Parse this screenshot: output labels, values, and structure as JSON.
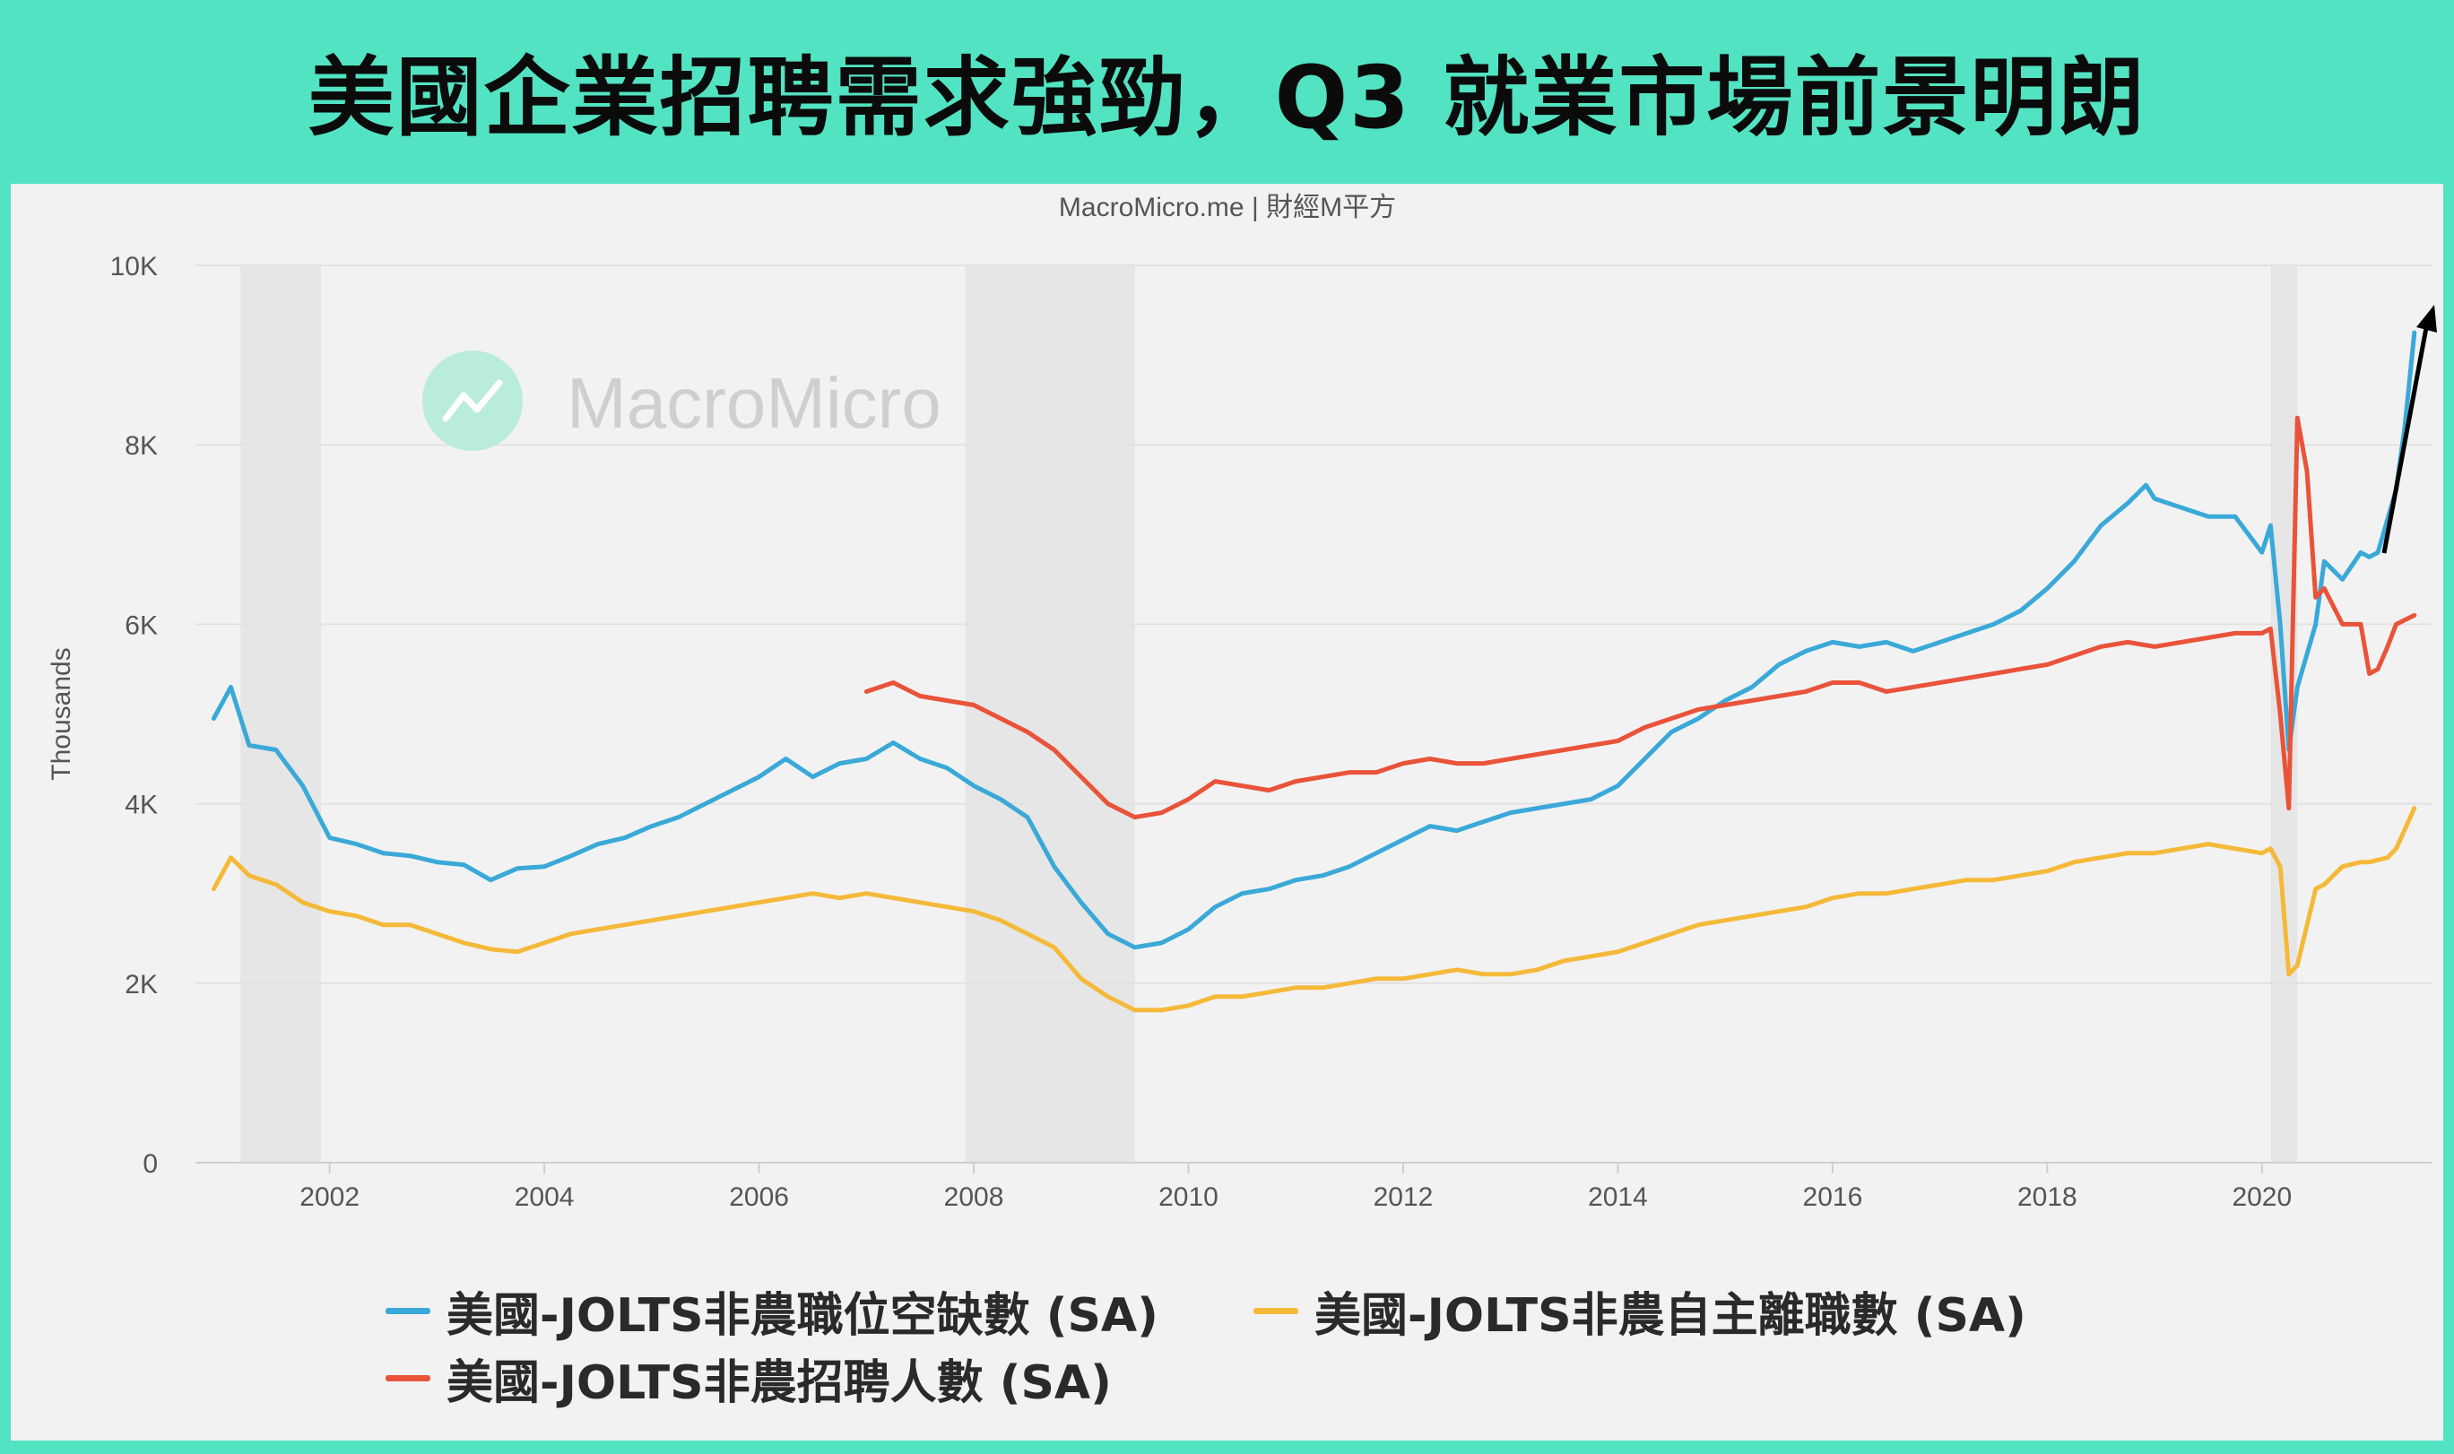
{
  "title": "美國企業招聘需求強勁，Q3 就業市場前景明朗",
  "source": "MacroMicro.me | 財經M平方",
  "watermark": "MacroMicro",
  "chart_data": {
    "type": "line",
    "ylabel": "Thousands",
    "ylim": [
      0,
      10000
    ],
    "y_ticks": [
      "0",
      "2K",
      "4K",
      "6K",
      "8K",
      "10K"
    ],
    "y_tick_values": [
      0,
      2000,
      4000,
      6000,
      8000,
      10000
    ],
    "x_ticks": [
      "2002",
      "2004",
      "2006",
      "2008",
      "2010",
      "2012",
      "2014",
      "2016",
      "2018",
      "2020"
    ],
    "x_range": [
      2000.75,
      2021.58
    ],
    "legend_placement": "bottom",
    "grid": true,
    "recession_shading": [
      [
        2001.17,
        2001.92
      ],
      [
        2007.92,
        2009.5
      ],
      [
        2020.08,
        2020.33
      ]
    ],
    "annotation": "upward arrow indicating rising job openings",
    "series": [
      {
        "name": "美國-JOLTS非農職位空缺數 (SA)",
        "color": "#3aa9d8",
        "points": [
          [
            2000.92,
            4950
          ],
          [
            2001.08,
            5300
          ],
          [
            2001.25,
            4650
          ],
          [
            2001.5,
            4600
          ],
          [
            2001.75,
            4200
          ],
          [
            2002.0,
            3620
          ],
          [
            2002.25,
            3550
          ],
          [
            2002.5,
            3450
          ],
          [
            2002.75,
            3420
          ],
          [
            2003.0,
            3350
          ],
          [
            2003.25,
            3320
          ],
          [
            2003.5,
            3150
          ],
          [
            2003.75,
            3280
          ],
          [
            2004.0,
            3300
          ],
          [
            2004.25,
            3420
          ],
          [
            2004.5,
            3550
          ],
          [
            2004.75,
            3620
          ],
          [
            2005.0,
            3750
          ],
          [
            2005.25,
            3850
          ],
          [
            2005.5,
            4000
          ],
          [
            2005.75,
            4150
          ],
          [
            2006.0,
            4300
          ],
          [
            2006.25,
            4500
          ],
          [
            2006.5,
            4300
          ],
          [
            2006.75,
            4450
          ],
          [
            2007.0,
            4500
          ],
          [
            2007.25,
            4680
          ],
          [
            2007.5,
            4500
          ],
          [
            2007.75,
            4400
          ],
          [
            2008.0,
            4200
          ],
          [
            2008.25,
            4050
          ],
          [
            2008.5,
            3850
          ],
          [
            2008.75,
            3300
          ],
          [
            2009.0,
            2900
          ],
          [
            2009.25,
            2550
          ],
          [
            2009.5,
            2400
          ],
          [
            2009.75,
            2450
          ],
          [
            2010.0,
            2600
          ],
          [
            2010.25,
            2850
          ],
          [
            2010.5,
            3000
          ],
          [
            2010.75,
            3050
          ],
          [
            2011.0,
            3150
          ],
          [
            2011.25,
            3200
          ],
          [
            2011.5,
            3300
          ],
          [
            2011.75,
            3450
          ],
          [
            2012.0,
            3600
          ],
          [
            2012.25,
            3750
          ],
          [
            2012.5,
            3700
          ],
          [
            2012.75,
            3800
          ],
          [
            2013.0,
            3900
          ],
          [
            2013.25,
            3950
          ],
          [
            2013.5,
            4000
          ],
          [
            2013.75,
            4050
          ],
          [
            2014.0,
            4200
          ],
          [
            2014.25,
            4500
          ],
          [
            2014.5,
            4800
          ],
          [
            2014.75,
            4950
          ],
          [
            2015.0,
            5150
          ],
          [
            2015.25,
            5300
          ],
          [
            2015.5,
            5550
          ],
          [
            2015.75,
            5700
          ],
          [
            2016.0,
            5800
          ],
          [
            2016.25,
            5750
          ],
          [
            2016.5,
            5800
          ],
          [
            2016.75,
            5700
          ],
          [
            2017.0,
            5800
          ],
          [
            2017.25,
            5900
          ],
          [
            2017.5,
            6000
          ],
          [
            2017.75,
            6150
          ],
          [
            2018.0,
            6400
          ],
          [
            2018.25,
            6700
          ],
          [
            2018.5,
            7100
          ],
          [
            2018.75,
            7350
          ],
          [
            2018.92,
            7550
          ],
          [
            2019.0,
            7400
          ],
          [
            2019.25,
            7300
          ],
          [
            2019.5,
            7200
          ],
          [
            2019.75,
            7200
          ],
          [
            2020.0,
            6800
          ],
          [
            2020.08,
            7100
          ],
          [
            2020.17,
            6000
          ],
          [
            2020.25,
            4600
          ],
          [
            2020.33,
            5300
          ],
          [
            2020.5,
            6000
          ],
          [
            2020.58,
            6700
          ],
          [
            2020.75,
            6500
          ],
          [
            2020.92,
            6800
          ],
          [
            2021.0,
            6750
          ],
          [
            2021.08,
            6800
          ],
          [
            2021.25,
            7500
          ],
          [
            2021.33,
            8200
          ],
          [
            2021.42,
            9250
          ]
        ]
      },
      {
        "name": "美國-JOLTS非農自主離職數 (SA)",
        "color": "#f5b93a",
        "points": [
          [
            2000.92,
            3050
          ],
          [
            2001.08,
            3400
          ],
          [
            2001.25,
            3200
          ],
          [
            2001.5,
            3100
          ],
          [
            2001.75,
            2900
          ],
          [
            2002.0,
            2800
          ],
          [
            2002.25,
            2750
          ],
          [
            2002.5,
            2650
          ],
          [
            2002.75,
            2650
          ],
          [
            2003.0,
            2550
          ],
          [
            2003.25,
            2450
          ],
          [
            2003.5,
            2380
          ],
          [
            2003.75,
            2350
          ],
          [
            2004.0,
            2450
          ],
          [
            2004.25,
            2550
          ],
          [
            2004.5,
            2600
          ],
          [
            2004.75,
            2650
          ],
          [
            2005.0,
            2700
          ],
          [
            2005.25,
            2750
          ],
          [
            2005.5,
            2800
          ],
          [
            2005.75,
            2850
          ],
          [
            2006.0,
            2900
          ],
          [
            2006.25,
            2950
          ],
          [
            2006.5,
            3000
          ],
          [
            2006.75,
            2950
          ],
          [
            2007.0,
            3000
          ],
          [
            2007.25,
            2950
          ],
          [
            2007.5,
            2900
          ],
          [
            2007.75,
            2850
          ],
          [
            2008.0,
            2800
          ],
          [
            2008.25,
            2700
          ],
          [
            2008.5,
            2550
          ],
          [
            2008.75,
            2400
          ],
          [
            2009.0,
            2050
          ],
          [
            2009.25,
            1850
          ],
          [
            2009.5,
            1700
          ],
          [
            2009.75,
            1700
          ],
          [
            2010.0,
            1750
          ],
          [
            2010.25,
            1850
          ],
          [
            2010.5,
            1850
          ],
          [
            2010.75,
            1900
          ],
          [
            2011.0,
            1950
          ],
          [
            2011.25,
            1950
          ],
          [
            2011.5,
            2000
          ],
          [
            2011.75,
            2050
          ],
          [
            2012.0,
            2050
          ],
          [
            2012.25,
            2100
          ],
          [
            2012.5,
            2150
          ],
          [
            2012.75,
            2100
          ],
          [
            2013.0,
            2100
          ],
          [
            2013.25,
            2150
          ],
          [
            2013.5,
            2250
          ],
          [
            2013.75,
            2300
          ],
          [
            2014.0,
            2350
          ],
          [
            2014.25,
            2450
          ],
          [
            2014.5,
            2550
          ],
          [
            2014.75,
            2650
          ],
          [
            2015.0,
            2700
          ],
          [
            2015.25,
            2750
          ],
          [
            2015.5,
            2800
          ],
          [
            2015.75,
            2850
          ],
          [
            2016.0,
            2950
          ],
          [
            2016.25,
            3000
          ],
          [
            2016.5,
            3000
          ],
          [
            2016.75,
            3050
          ],
          [
            2017.0,
            3100
          ],
          [
            2017.25,
            3150
          ],
          [
            2017.5,
            3150
          ],
          [
            2017.75,
            3200
          ],
          [
            2018.0,
            3250
          ],
          [
            2018.25,
            3350
          ],
          [
            2018.5,
            3400
          ],
          [
            2018.75,
            3450
          ],
          [
            2019.0,
            3450
          ],
          [
            2019.25,
            3500
          ],
          [
            2019.5,
            3550
          ],
          [
            2019.75,
            3500
          ],
          [
            2020.0,
            3450
          ],
          [
            2020.08,
            3500
          ],
          [
            2020.17,
            3300
          ],
          [
            2020.25,
            2100
          ],
          [
            2020.33,
            2200
          ],
          [
            2020.5,
            3050
          ],
          [
            2020.58,
            3100
          ],
          [
            2020.75,
            3300
          ],
          [
            2020.92,
            3350
          ],
          [
            2021.0,
            3350
          ],
          [
            2021.17,
            3400
          ],
          [
            2021.25,
            3500
          ],
          [
            2021.42,
            3950
          ]
        ]
      },
      {
        "name": "美國-JOLTS非農招聘人數 (SA)",
        "color": "#e9533a",
        "points": [
          [
            2007.0,
            5250
          ],
          [
            2007.25,
            5350
          ],
          [
            2007.5,
            5200
          ],
          [
            2007.75,
            5150
          ],
          [
            2008.0,
            5100
          ],
          [
            2008.25,
            4950
          ],
          [
            2008.5,
            4800
          ],
          [
            2008.75,
            4600
          ],
          [
            2009.0,
            4300
          ],
          [
            2009.25,
            4000
          ],
          [
            2009.5,
            3850
          ],
          [
            2009.75,
            3900
          ],
          [
            2010.0,
            4050
          ],
          [
            2010.25,
            4250
          ],
          [
            2010.5,
            4200
          ],
          [
            2010.75,
            4150
          ],
          [
            2011.0,
            4250
          ],
          [
            2011.25,
            4300
          ],
          [
            2011.5,
            4350
          ],
          [
            2011.75,
            4350
          ],
          [
            2012.0,
            4450
          ],
          [
            2012.25,
            4500
          ],
          [
            2012.5,
            4450
          ],
          [
            2012.75,
            4450
          ],
          [
            2013.0,
            4500
          ],
          [
            2013.25,
            4550
          ],
          [
            2013.5,
            4600
          ],
          [
            2013.75,
            4650
          ],
          [
            2014.0,
            4700
          ],
          [
            2014.25,
            4850
          ],
          [
            2014.5,
            4950
          ],
          [
            2014.75,
            5050
          ],
          [
            2015.0,
            5100
          ],
          [
            2015.25,
            5150
          ],
          [
            2015.5,
            5200
          ],
          [
            2015.75,
            5250
          ],
          [
            2016.0,
            5350
          ],
          [
            2016.25,
            5350
          ],
          [
            2016.5,
            5250
          ],
          [
            2016.75,
            5300
          ],
          [
            2017.0,
            5350
          ],
          [
            2017.25,
            5400
          ],
          [
            2017.5,
            5450
          ],
          [
            2017.75,
            5500
          ],
          [
            2018.0,
            5550
          ],
          [
            2018.25,
            5650
          ],
          [
            2018.5,
            5750
          ],
          [
            2018.75,
            5800
          ],
          [
            2019.0,
            5750
          ],
          [
            2019.25,
            5800
          ],
          [
            2019.5,
            5850
          ],
          [
            2019.75,
            5900
          ],
          [
            2020.0,
            5900
          ],
          [
            2020.08,
            5950
          ],
          [
            2020.17,
            5000
          ],
          [
            2020.25,
            3950
          ],
          [
            2020.33,
            8300
          ],
          [
            2020.42,
            7700
          ],
          [
            2020.5,
            6300
          ],
          [
            2020.58,
            6400
          ],
          [
            2020.75,
            6000
          ],
          [
            2020.92,
            6000
          ],
          [
            2021.0,
            5450
          ],
          [
            2021.08,
            5500
          ],
          [
            2021.17,
            5750
          ],
          [
            2021.25,
            6000
          ],
          [
            2021.42,
            6100
          ]
        ]
      }
    ]
  }
}
